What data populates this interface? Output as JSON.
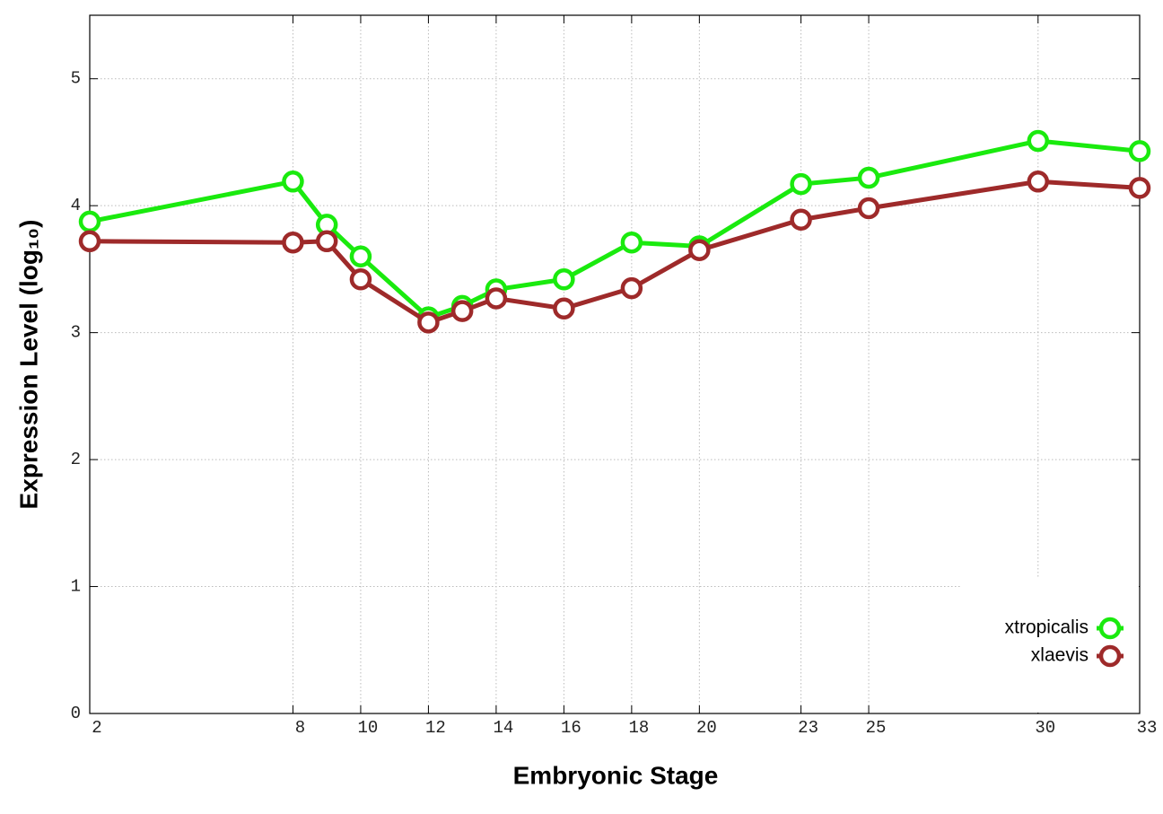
{
  "chart_data": {
    "type": "line",
    "x_label": "Embryonic Stage",
    "y_label": "Expression Level (log₁₀)",
    "x": [
      2,
      8,
      9,
      10,
      12,
      13,
      14,
      16,
      18,
      20,
      23,
      25,
      30,
      33
    ],
    "series": [
      {
        "name": "xtropicalis",
        "color": "#1aea0e",
        "values": [
          3.875,
          4.19,
          3.85,
          3.6,
          3.12,
          3.21,
          3.34,
          3.42,
          3.71,
          3.68,
          4.17,
          4.22,
          4.51,
          4.43
        ]
      },
      {
        "name": "xlaevis",
        "color": "#9e2a2a",
        "values": [
          3.72,
          3.71,
          3.72,
          3.42,
          3.08,
          3.17,
          3.27,
          3.19,
          3.35,
          3.65,
          3.89,
          3.98,
          4.19,
          4.14
        ]
      }
    ],
    "xlim": [
      2,
      33
    ],
    "xticks": [
      2,
      8,
      10,
      12,
      14,
      16,
      18,
      20,
      23,
      25,
      30,
      33
    ],
    "ylim": [
      0,
      5.5
    ],
    "yticks": [
      0,
      1,
      2,
      3,
      4,
      5
    ],
    "grid": true,
    "legend": "lower right"
  }
}
